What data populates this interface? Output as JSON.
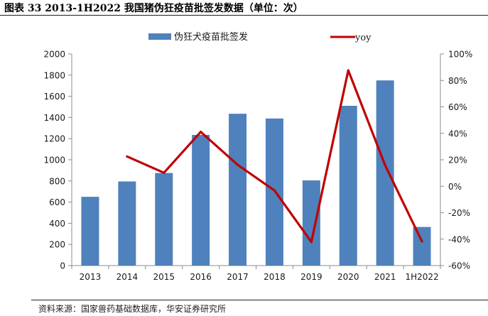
{
  "title": "图表 33 2013-1H2022 我国猪伪狂疫苗批签发数据（单位：次）",
  "source": "资料来源：国家兽药基础数据库，华安证券研究所",
  "chart_data": {
    "type": "bar",
    "title": "",
    "xlabel": "",
    "ylabel": "",
    "categories": [
      "2013",
      "2014",
      "2015",
      "2016",
      "2017",
      "2018",
      "2019",
      "2020",
      "2021",
      "1H2022"
    ],
    "series": [
      {
        "name": "伪狂犬疫苗批签发",
        "type": "bar",
        "axis": "left",
        "color": "#4f81bd",
        "values": [
          650,
          795,
          875,
          1235,
          1435,
          1390,
          805,
          1510,
          1750,
          365
        ]
      },
      {
        "name": "yoy",
        "type": "line",
        "axis": "right",
        "color": "#c00000",
        "values": [
          null,
          22.5,
          10.2,
          41.1,
          16.2,
          -3.2,
          -42.1,
          87.6,
          15.9,
          -41.7
        ]
      }
    ],
    "ylim": [
      0,
      2000
    ],
    "yticks": [
      0,
      200,
      400,
      600,
      800,
      1000,
      1200,
      1400,
      1600,
      1800,
      2000
    ],
    "y2lim": [
      -60,
      100
    ],
    "y2ticks": [
      "-60%",
      "-40%",
      "-20%",
      "0%",
      "20%",
      "40%",
      "60%",
      "80%",
      "100%"
    ],
    "legend": "top",
    "grid": false
  }
}
